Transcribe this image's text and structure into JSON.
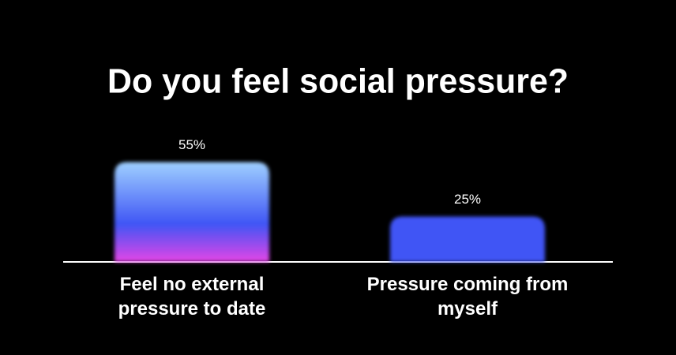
{
  "chart_data": {
    "type": "bar",
    "title": "Do you feel social pressure?",
    "categories": [
      "Feel no external pressure to date",
      "Pressure coming from myself"
    ],
    "values": [
      55,
      25
    ],
    "value_labels": [
      "55%",
      "25%"
    ],
    "colors": [
      [
        "#9fd0ff",
        "#3f55f5",
        "#e445e6"
      ],
      [
        "#3f55f5"
      ]
    ]
  }
}
